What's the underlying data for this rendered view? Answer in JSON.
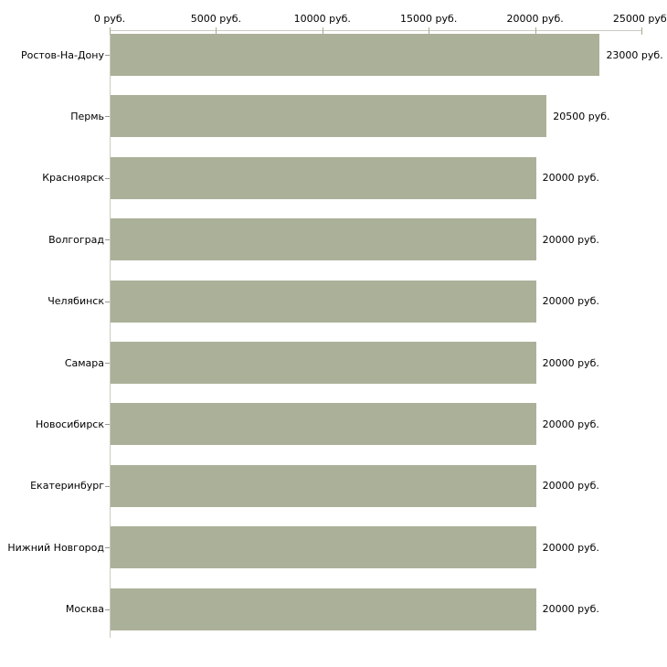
{
  "chart_data": {
    "type": "bar",
    "orientation": "horizontal",
    "title": "",
    "xlabel": "",
    "ylabel": "",
    "unit": "руб.",
    "categories": [
      "Ростов-На-Дону",
      "Пермь",
      "Красноярск",
      "Волгоград",
      "Челябинск",
      "Самара",
      "Новосибирск",
      "Екатеринбург",
      "Нижний Новгород",
      "Москва"
    ],
    "values": [
      23000,
      20500,
      20000,
      20000,
      20000,
      20000,
      20000,
      20000,
      20000,
      20000
    ],
    "value_labels": [
      "23000 руб.",
      "20500 руб.",
      "20000 руб.",
      "20000 руб.",
      "20000 руб.",
      "20000 руб.",
      "20000 руб.",
      "20000 руб.",
      "20000 руб.",
      "20000 руб."
    ],
    "x_ticks": [
      {
        "value": 0,
        "label": "0 руб."
      },
      {
        "value": 5000,
        "label": "5000 руб."
      },
      {
        "value": 10000,
        "label": "10000 руб."
      },
      {
        "value": 15000,
        "label": "15000 руб."
      },
      {
        "value": 20000,
        "label": "20000 руб."
      },
      {
        "value": 25000,
        "label": "25000 руб."
      }
    ],
    "xlim": [
      0,
      25000
    ],
    "grid": false,
    "legend": false,
    "colors": {
      "bar": "#abb199",
      "axis_line": "#cbcbc0",
      "axis_tick": "#a9a996",
      "category_tick": "#99998e",
      "text": "#000000",
      "background": "#ffffff"
    }
  }
}
